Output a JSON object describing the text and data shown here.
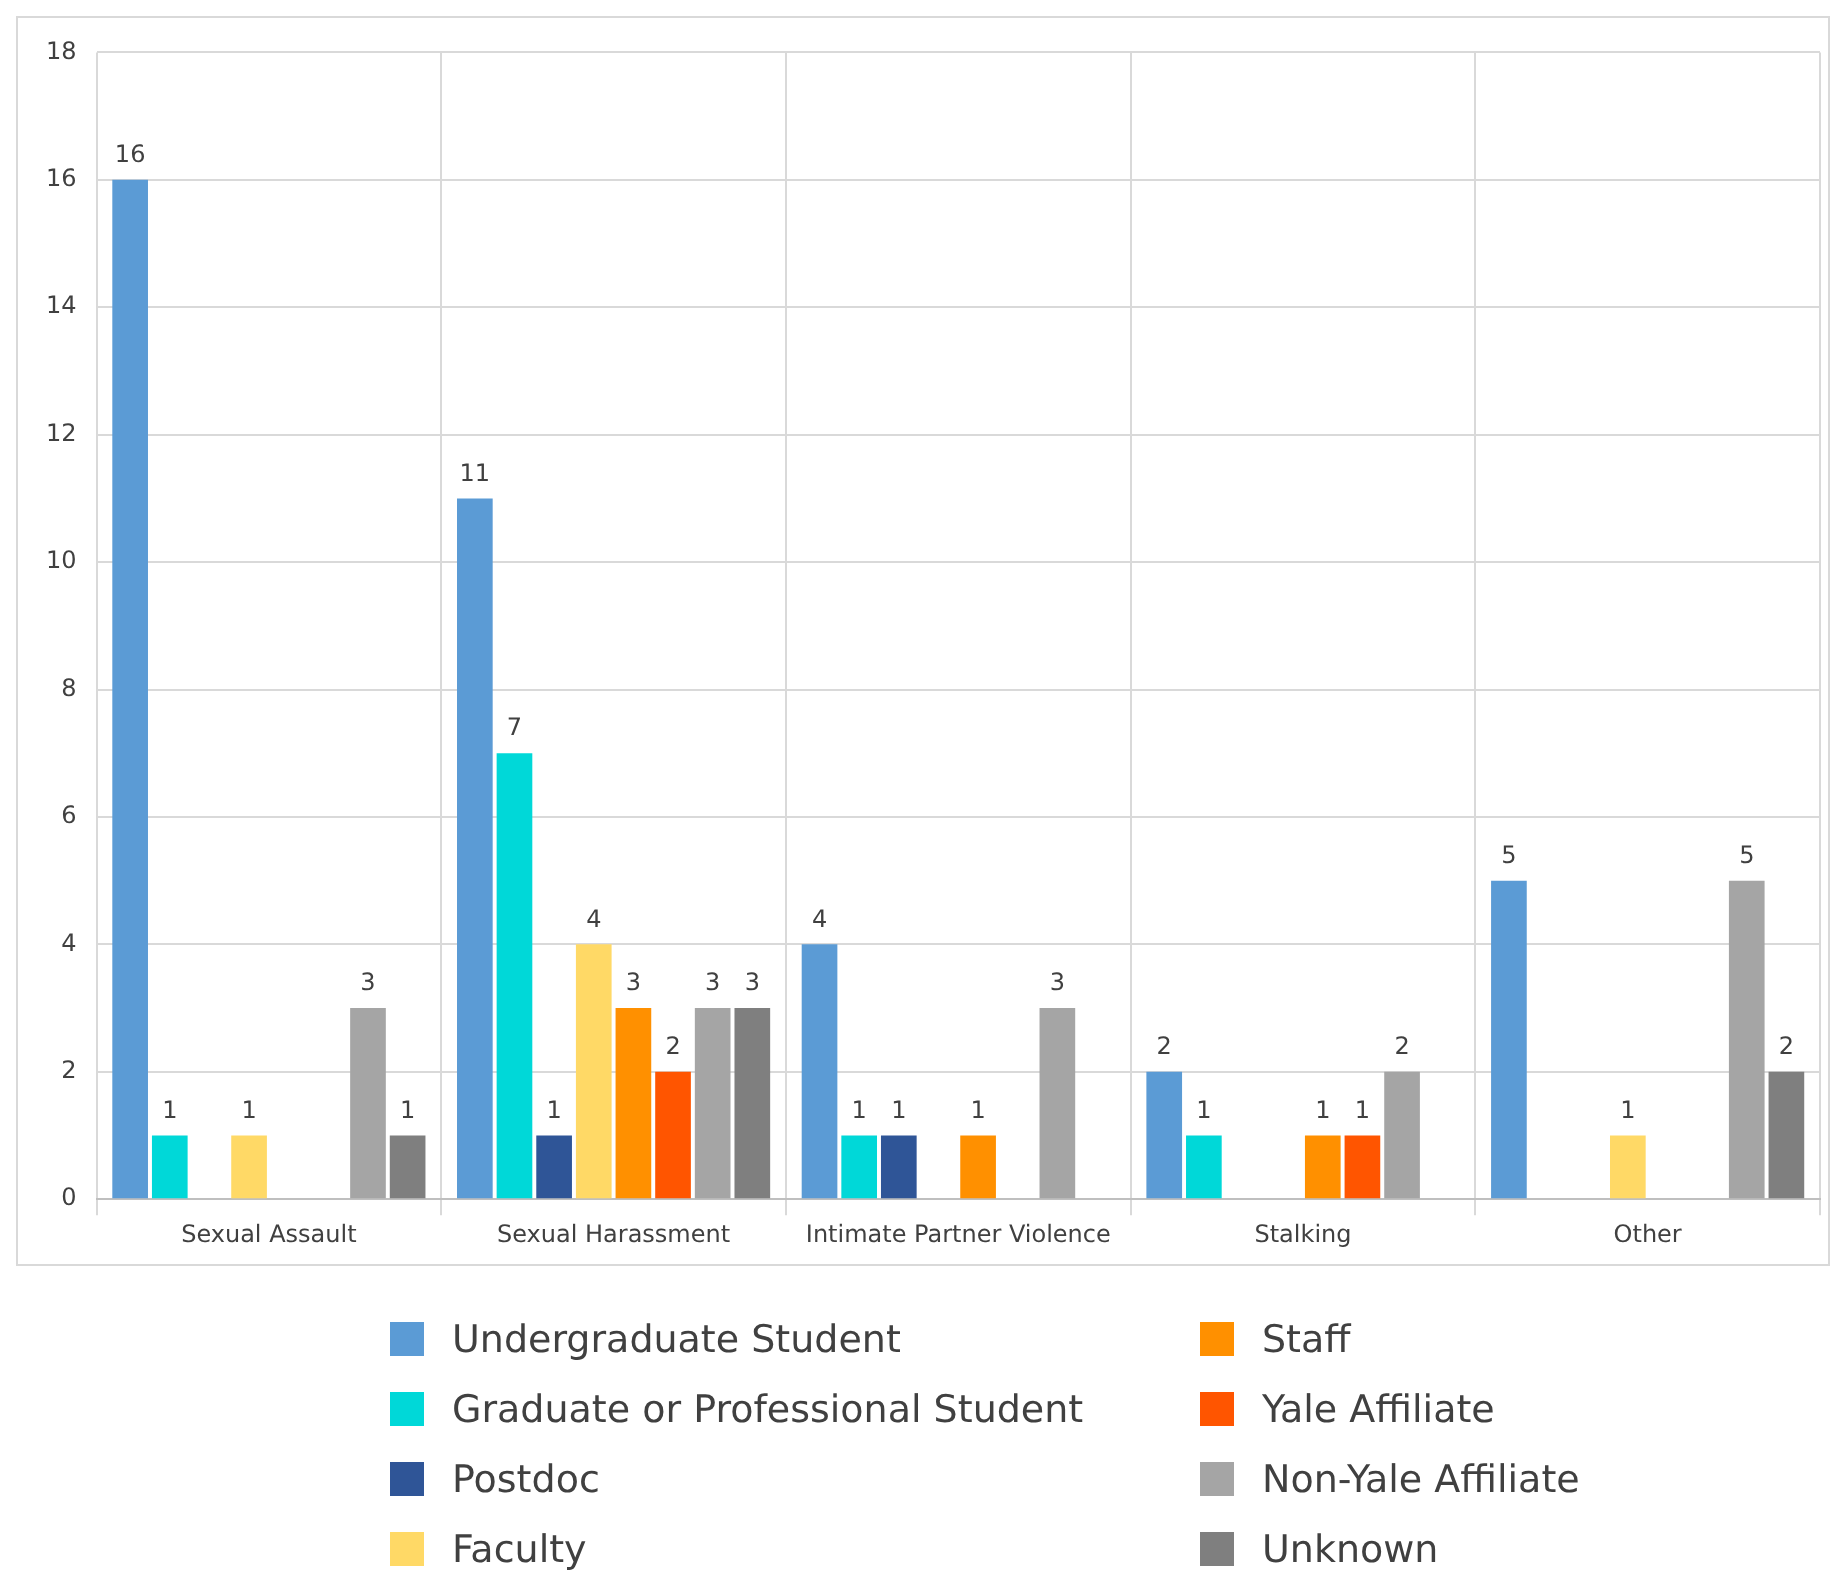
{
  "chart_data": {
    "type": "bar",
    "categories": [
      "Sexual Assault",
      "Sexual Harassment",
      "Intimate Partner Violence",
      "Stalking",
      "Other"
    ],
    "series": [
      {
        "name": "Undergraduate Student",
        "color": "#5b9bd5",
        "values": [
          16,
          11,
          4,
          2,
          5
        ]
      },
      {
        "name": "Graduate or Professional Student",
        "color": "#00d8d8",
        "values": [
          1,
          7,
          1,
          1,
          null
        ]
      },
      {
        "name": "Postdoc",
        "color": "#2f5597",
        "values": [
          null,
          1,
          1,
          null,
          null
        ]
      },
      {
        "name": "Faculty",
        "color": "#ffd966",
        "values": [
          1,
          4,
          null,
          null,
          1
        ]
      },
      {
        "name": "Staff",
        "color": "#ff9000",
        "values": [
          null,
          3,
          1,
          1,
          null
        ]
      },
      {
        "name": "Yale Affiliate",
        "color": "#ff5500",
        "values": [
          null,
          2,
          null,
          1,
          null
        ]
      },
      {
        "name": "Non-Yale Affiliate",
        "color": "#a5a5a5",
        "values": [
          3,
          3,
          3,
          2,
          5
        ]
      },
      {
        "name": "Unknown",
        "color": "#7f7f7f",
        "values": [
          1,
          3,
          null,
          null,
          2
        ]
      }
    ],
    "ylim": [
      0,
      18
    ],
    "yticks": [
      0,
      2,
      4,
      6,
      8,
      10,
      12,
      14,
      16,
      18
    ],
    "grid": true,
    "legend": "bottom",
    "data_labels": true
  }
}
